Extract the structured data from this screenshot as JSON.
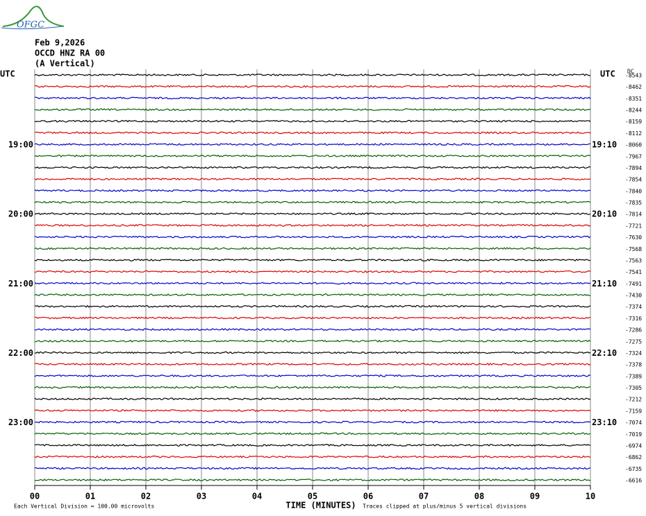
{
  "chart_data": {
    "type": "helicorder",
    "logo": "OFGC",
    "date": "Feb 9,2026",
    "station": "OCCD HNZ RA 00",
    "component": "(A Vertical)",
    "left_axis_label": "UTC",
    "right_axis_label": "UTC",
    "dc_label": "DC",
    "x_label": "TIME (MINUTES)",
    "scale_note": "Each Vertical Division =  100.00 microvolts",
    "clip_note": "Traces clipped at plus/minus 5 vertical divisions",
    "xlim": [
      0,
      10
    ],
    "xticks": [
      {
        "value": 0,
        "label": "00"
      },
      {
        "value": 1,
        "label": "01"
      },
      {
        "value": 2,
        "label": "02"
      },
      {
        "value": 3,
        "label": "03"
      },
      {
        "value": 4,
        "label": "04"
      },
      {
        "value": 5,
        "label": "05"
      },
      {
        "value": 6,
        "label": "06"
      },
      {
        "value": 7,
        "label": "07"
      },
      {
        "value": 8,
        "label": "08"
      },
      {
        "value": 9,
        "label": "09"
      },
      {
        "value": 10,
        "label": "10"
      }
    ],
    "grid": true,
    "trace_colors": [
      "#000000",
      "#e00000",
      "#0000d0",
      "#006000"
    ],
    "row_labels_left": [
      null,
      null,
      null,
      null,
      null,
      null,
      "19:00",
      null,
      null,
      null,
      null,
      null,
      "20:00",
      null,
      null,
      null,
      null,
      null,
      "21:00",
      null,
      null,
      null,
      null,
      null,
      "22:00",
      null,
      null,
      null,
      null,
      null,
      "23:00",
      null,
      null,
      null,
      null,
      null
    ],
    "row_labels_right": [
      null,
      null,
      null,
      null,
      null,
      null,
      "19:10",
      null,
      null,
      null,
      null,
      null,
      "20:10",
      null,
      null,
      null,
      null,
      null,
      "21:10",
      null,
      null,
      null,
      null,
      null,
      "22:10",
      null,
      null,
      null,
      null,
      null,
      "23:10",
      null,
      null,
      null,
      null,
      null
    ],
    "dc_values": [
      -8543,
      -8462,
      -8351,
      -8244,
      -8159,
      -8112,
      -8060,
      -7967,
      -7894,
      -7854,
      -7840,
      -7835,
      -7814,
      -7721,
      -7630,
      -7568,
      -7563,
      -7541,
      -7491,
      -7430,
      -7374,
      -7316,
      -7286,
      -7275,
      -7324,
      -7378,
      -7389,
      -7305,
      -7212,
      -7159,
      -7074,
      -7019,
      -6974,
      -6862,
      -6735,
      -6616
    ]
  }
}
